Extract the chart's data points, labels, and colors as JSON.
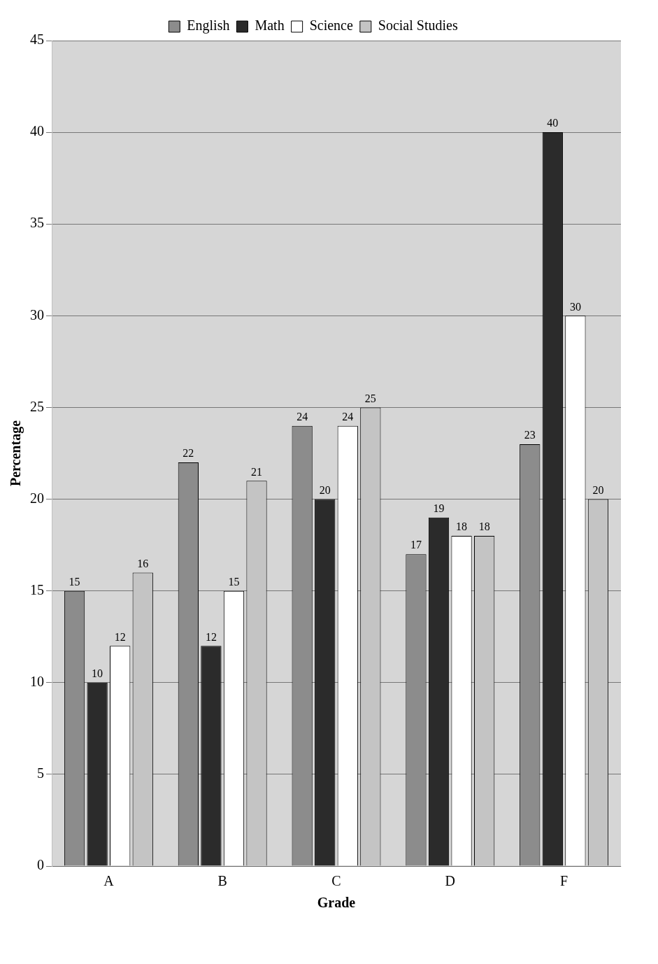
{
  "chart_data": {
    "type": "bar",
    "xlabel": "Grade",
    "ylabel": "Percentage",
    "categories": [
      "A",
      "B",
      "C",
      "D",
      "F"
    ],
    "series": [
      {
        "name": "English",
        "color": "#8c8c8c",
        "values": [
          15,
          22,
          24,
          17,
          23
        ]
      },
      {
        "name": "Math",
        "color": "#2b2b2b",
        "values": [
          10,
          12,
          20,
          19,
          40
        ]
      },
      {
        "name": "Science",
        "color": "#ffffff",
        "values": [
          12,
          15,
          24,
          18,
          30
        ]
      },
      {
        "name": "Social Studies",
        "color": "#c4c4c4",
        "values": [
          16,
          21,
          25,
          18,
          20
        ]
      }
    ],
    "ylim": [
      0,
      45
    ],
    "yticks": [
      0,
      5,
      10,
      15,
      20,
      25,
      30,
      35,
      40,
      45
    ],
    "grid": "y",
    "legend": "top",
    "data_labels": true
  }
}
